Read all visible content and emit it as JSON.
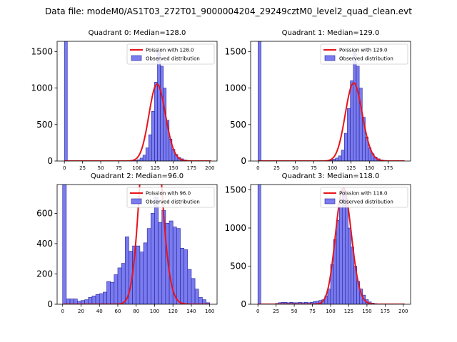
{
  "suptitle": "Data file: modeM0/AS1T03_272T01_9000004204_29249cztM0_level2_quad_clean.evt",
  "colors": {
    "hist_fill": "#7b7bf0",
    "hist_edge": "#22229a",
    "poisson_line": "#e8141a"
  },
  "chart_data": [
    {
      "type": "bar",
      "title": "Quadrant 0: Median=128.0",
      "median": 128,
      "bin_width": 4,
      "xlim": [
        -10,
        210
      ],
      "ylim": [
        0,
        1640
      ],
      "xticks": [
        0,
        25,
        50,
        75,
        100,
        125,
        150,
        175,
        200
      ],
      "yticks": [
        0,
        500,
        1000,
        1500
      ],
      "legend": [
        "Poission with 128.0",
        "Observed distribution"
      ],
      "legend_loc": "upper right",
      "bins": [
        [
          0,
          1640
        ],
        [
          96,
          6
        ],
        [
          100,
          18
        ],
        [
          104,
          40
        ],
        [
          108,
          80
        ],
        [
          112,
          180
        ],
        [
          116,
          360
        ],
        [
          120,
          680
        ],
        [
          124,
          1080
        ],
        [
          128,
          1500
        ],
        [
          132,
          1300
        ],
        [
          136,
          1000
        ],
        [
          140,
          560
        ],
        [
          144,
          300
        ],
        [
          148,
          160
        ],
        [
          152,
          90
        ],
        [
          156,
          50
        ],
        [
          160,
          30
        ],
        [
          164,
          15
        ],
        [
          168,
          8
        ],
        [
          172,
          4
        ]
      ]
    },
    {
      "type": "bar",
      "title": "Quadrant 1: Median=129.0",
      "median": 129,
      "bin_width": 4,
      "xlim": [
        -10,
        205
      ],
      "ylim": [
        0,
        1640
      ],
      "xticks": [
        0,
        25,
        50,
        75,
        100,
        125,
        150,
        175
      ],
      "yticks": [
        0,
        500,
        1000,
        1500
      ],
      "legend": [
        "Poission with 129.0",
        "Observed distribution"
      ],
      "legend_loc": "upper right",
      "bins": [
        [
          0,
          1640
        ],
        [
          96,
          10
        ],
        [
          100,
          25
        ],
        [
          104,
          40
        ],
        [
          108,
          70
        ],
        [
          112,
          150
        ],
        [
          116,
          380
        ],
        [
          120,
          720
        ],
        [
          124,
          1100
        ],
        [
          128,
          1500
        ],
        [
          132,
          1300
        ],
        [
          136,
          1000
        ],
        [
          140,
          600
        ],
        [
          144,
          330
        ],
        [
          148,
          180
        ],
        [
          152,
          100
        ],
        [
          156,
          55
        ],
        [
          160,
          30
        ],
        [
          164,
          15
        ],
        [
          168,
          8
        ],
        [
          172,
          4
        ]
      ]
    },
    {
      "type": "bar",
      "title": "Quadrant 2: Median=96.0",
      "median": 96,
      "bin_width": 4,
      "xlim": [
        -6,
        168
      ],
      "ylim": [
        0,
        790
      ],
      "xticks": [
        0,
        20,
        40,
        60,
        80,
        100,
        120,
        140,
        160
      ],
      "yticks": [
        0,
        200,
        400,
        600
      ],
      "legend": [
        "Poission with 96.0",
        "Observed distribution"
      ],
      "legend_loc": "upper right",
      "bins": [
        [
          0,
          790
        ],
        [
          4,
          35
        ],
        [
          8,
          35
        ],
        [
          12,
          35
        ],
        [
          16,
          20
        ],
        [
          20,
          25
        ],
        [
          24,
          30
        ],
        [
          28,
          45
        ],
        [
          32,
          55
        ],
        [
          36,
          65
        ],
        [
          40,
          70
        ],
        [
          44,
          80
        ],
        [
          48,
          150
        ],
        [
          52,
          145
        ],
        [
          56,
          195
        ],
        [
          60,
          240
        ],
        [
          64,
          270
        ],
        [
          68,
          445
        ],
        [
          72,
          350
        ],
        [
          76,
          385
        ],
        [
          80,
          385
        ],
        [
          84,
          345
        ],
        [
          88,
          405
        ],
        [
          92,
          500
        ],
        [
          96,
          600
        ],
        [
          100,
          705
        ],
        [
          104,
          540
        ],
        [
          108,
          620
        ],
        [
          112,
          535
        ],
        [
          116,
          550
        ],
        [
          120,
          510
        ],
        [
          124,
          500
        ],
        [
          128,
          370
        ],
        [
          132,
          360
        ],
        [
          136,
          230
        ],
        [
          140,
          170
        ],
        [
          144,
          100
        ],
        [
          148,
          45
        ],
        [
          152,
          30
        ],
        [
          156,
          10
        ]
      ]
    },
    {
      "type": "bar",
      "title": "Quadrant 3: Median=118.0",
      "median": 118,
      "bin_width": 4,
      "xlim": [
        -10,
        210
      ],
      "ylim": [
        0,
        1570
      ],
      "xticks": [
        0,
        25,
        50,
        75,
        100,
        125,
        150,
        175,
        200
      ],
      "yticks": [
        0,
        500,
        1000,
        1500
      ],
      "legend": [
        "Poission with 118.0",
        "Observed distribution"
      ],
      "legend_loc": "upper right",
      "bins": [
        [
          0,
          1570
        ],
        [
          24,
          10
        ],
        [
          28,
          20
        ],
        [
          32,
          25
        ],
        [
          36,
          25
        ],
        [
          40,
          20
        ],
        [
          44,
          25
        ],
        [
          48,
          20
        ],
        [
          52,
          20
        ],
        [
          56,
          25
        ],
        [
          60,
          20
        ],
        [
          64,
          25
        ],
        [
          68,
          20
        ],
        [
          72,
          25
        ],
        [
          76,
          35
        ],
        [
          80,
          40
        ],
        [
          84,
          50
        ],
        [
          88,
          60
        ],
        [
          92,
          110
        ],
        [
          96,
          200
        ],
        [
          100,
          520
        ],
        [
          104,
          850
        ],
        [
          108,
          1100
        ],
        [
          112,
          1280
        ],
        [
          116,
          1500
        ],
        [
          120,
          1380
        ],
        [
          124,
          1000
        ],
        [
          128,
          750
        ],
        [
          132,
          500
        ],
        [
          136,
          300
        ],
        [
          140,
          200
        ],
        [
          144,
          120
        ],
        [
          148,
          60
        ],
        [
          152,
          30
        ],
        [
          156,
          15
        ],
        [
          160,
          8
        ]
      ]
    }
  ]
}
